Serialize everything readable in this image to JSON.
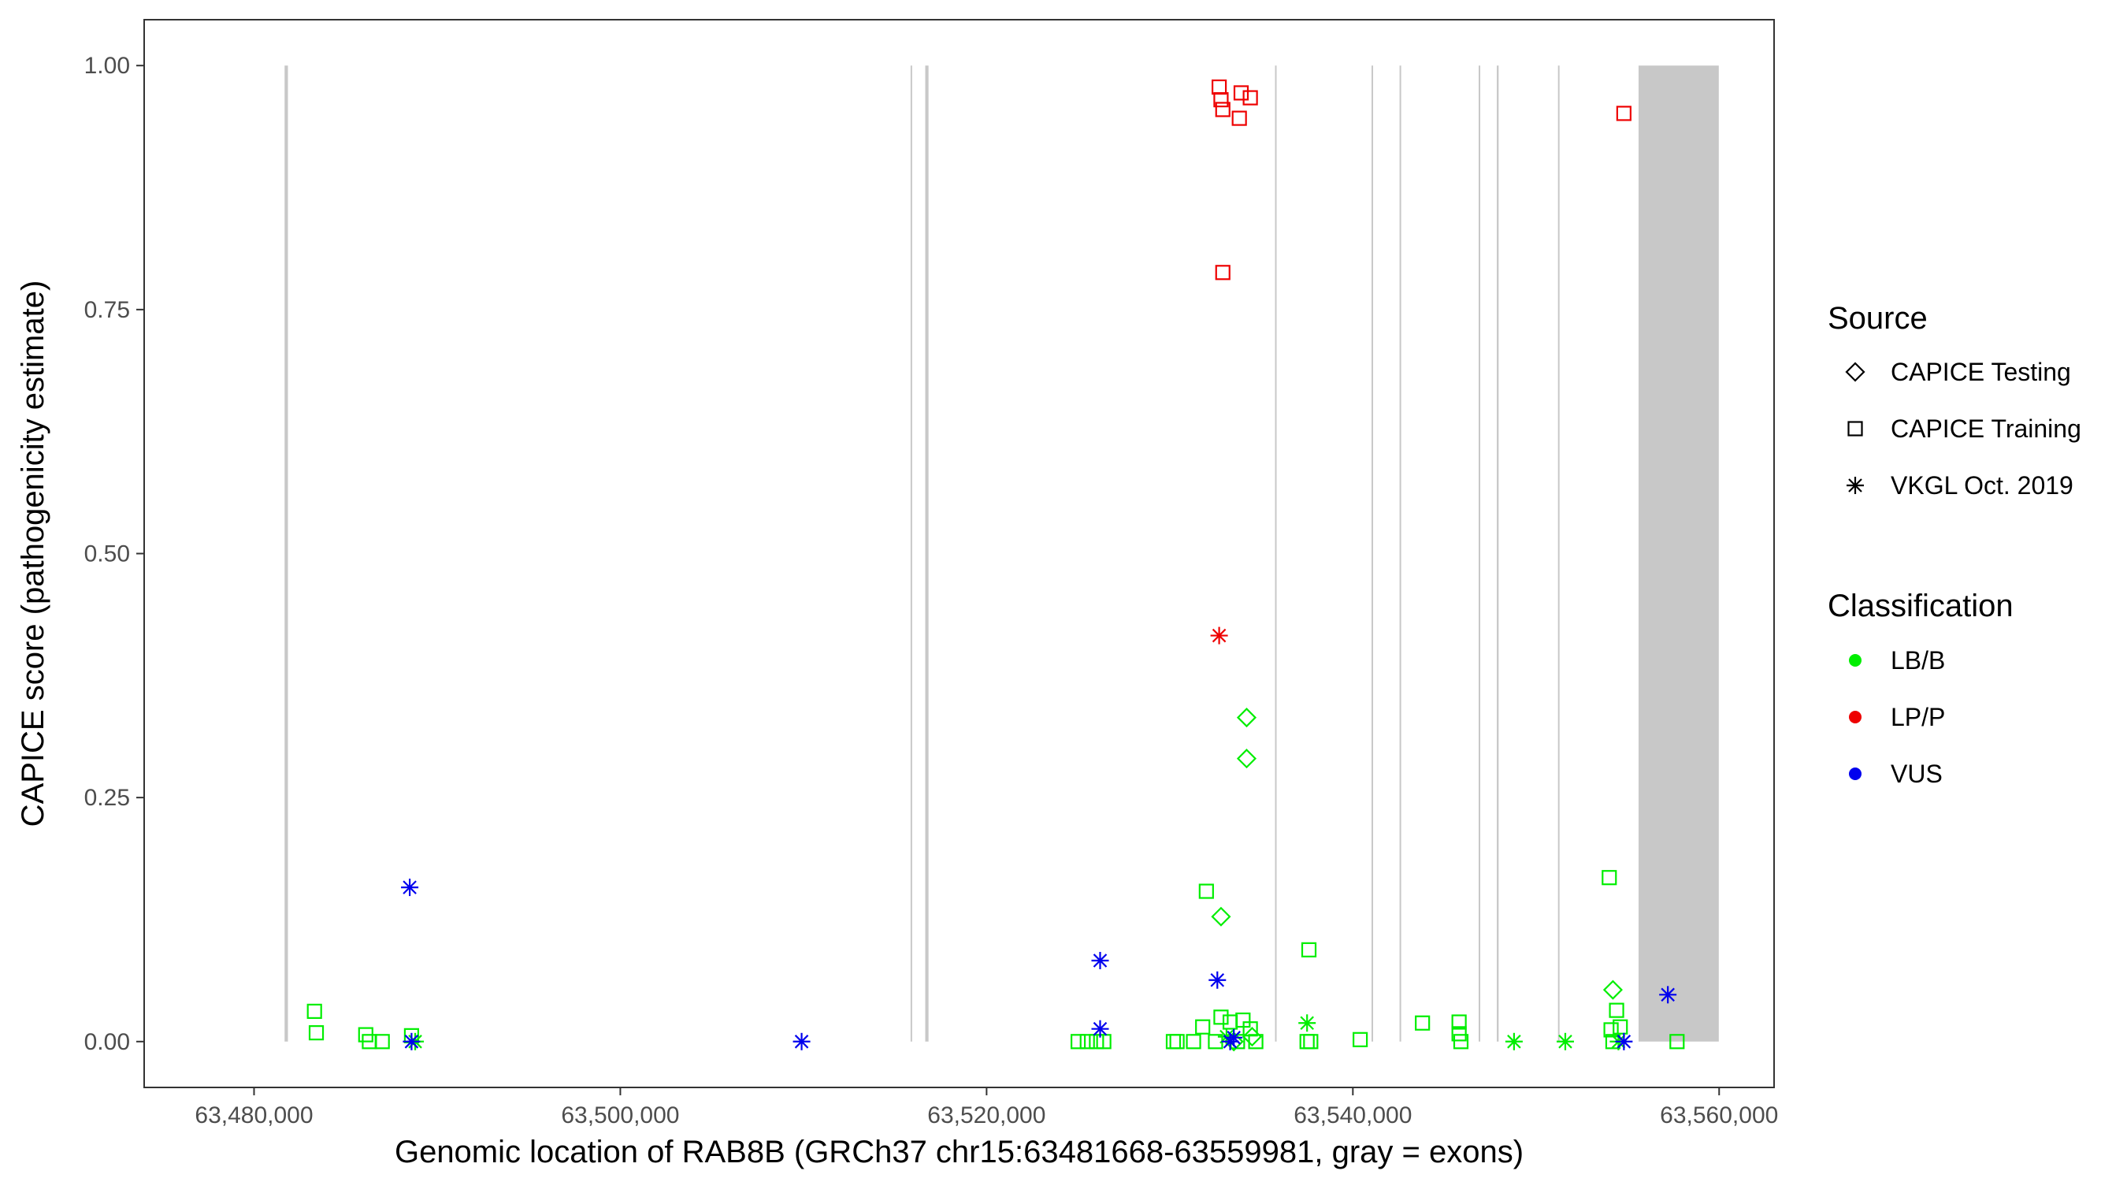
{
  "chart_data": {
    "type": "scatter",
    "title": "",
    "xlabel": "Genomic location of RAB8B (GRCh37 chr15:63481668-63559981, gray = exons)",
    "ylabel": "CAPICE score (pathogenicity estimate)",
    "xlim": [
      63474000,
      63563000
    ],
    "ylim": [
      -0.047,
      1.047
    ],
    "x_ticks": [
      63480000,
      63500000,
      63520000,
      63540000,
      63560000
    ],
    "x_tick_labels": [
      "63,480,000",
      "63,500,000",
      "63,520,000",
      "63,540,000",
      "63,560,000"
    ],
    "y_ticks": [
      0,
      0.25,
      0.5,
      0.75,
      1.0
    ],
    "y_tick_labels": [
      "0.00",
      "0.25",
      "0.50",
      "0.75",
      "1.00"
    ],
    "grid": false,
    "exon_color": "#c8c8c8",
    "exons": [
      [
        63481668,
        63481850
      ],
      [
        63515850,
        63515920
      ],
      [
        63516650,
        63516830
      ],
      [
        63535750,
        63535790
      ],
      [
        63541020,
        63541060
      ],
      [
        63542550,
        63542590
      ],
      [
        63546870,
        63546940
      ],
      [
        63547860,
        63547960
      ],
      [
        63551200,
        63551260
      ],
      [
        63555600,
        63559981
      ]
    ],
    "legend": {
      "position": "right",
      "source": {
        "title": "Source",
        "items": [
          {
            "label": "CAPICE Testing",
            "shape": "diamond"
          },
          {
            "label": "CAPICE Training",
            "shape": "square"
          },
          {
            "label": "VKGL Oct. 2019",
            "shape": "asterisk"
          }
        ]
      },
      "classification": {
        "title": "Classification",
        "items": [
          {
            "label": "LB/B",
            "color": "#00ee00"
          },
          {
            "label": "LP/P",
            "color": "#ee0000"
          },
          {
            "label": "VUS",
            "color": "#0000ee"
          }
        ]
      }
    },
    "series": [
      {
        "source": "CAPICE Training",
        "class": "LP/P",
        "points": [
          [
            63532700,
            0.978
          ],
          [
            63532800,
            0.965
          ],
          [
            63532900,
            0.955
          ],
          [
            63533900,
            0.972
          ],
          [
            63534400,
            0.967
          ],
          [
            63533800,
            0.946
          ],
          [
            63554800,
            0.951
          ],
          [
            63532900,
            0.788
          ]
        ]
      },
      {
        "source": "VKGL Oct. 2019",
        "class": "LP/P",
        "points": [
          [
            63532700,
            0.416
          ]
        ]
      },
      {
        "source": "CAPICE Testing",
        "class": "LB/B",
        "points": [
          [
            63534200,
            0.332
          ],
          [
            63534200,
            0.29
          ],
          [
            63532800,
            0.128
          ],
          [
            63554200,
            0.053
          ],
          [
            63534500,
            0.005
          ],
          [
            63533500,
            0.0
          ]
        ]
      },
      {
        "source": "CAPICE Training",
        "class": "LB/B",
        "points": [
          [
            63483300,
            0.031
          ],
          [
            63483400,
            0.009
          ],
          [
            63486100,
            0.007
          ],
          [
            63486300,
            0.0
          ],
          [
            63487000,
            0.0
          ],
          [
            63488600,
            0.006
          ],
          [
            63532000,
            0.154
          ],
          [
            63537600,
            0.094
          ],
          [
            63554000,
            0.168
          ],
          [
            63525000,
            0.0
          ],
          [
            63525500,
            0.0
          ],
          [
            63526000,
            0.0
          ],
          [
            63526400,
            0.0
          ],
          [
            63530200,
            0.0
          ],
          [
            63530400,
            0.0
          ],
          [
            63531300,
            0.0
          ],
          [
            63531800,
            0.015
          ],
          [
            63532500,
            0.0
          ],
          [
            63532800,
            0.025
          ],
          [
            63533300,
            0.02
          ],
          [
            63533700,
            0.0
          ],
          [
            63534000,
            0.022
          ],
          [
            63534400,
            0.013
          ],
          [
            63534700,
            0.0
          ],
          [
            63537500,
            0.0
          ],
          [
            63537700,
            0.0
          ],
          [
            63540400,
            0.002
          ],
          [
            63543800,
            0.019
          ],
          [
            63545800,
            0.02
          ],
          [
            63545800,
            0.008
          ],
          [
            63545900,
            0.0
          ],
          [
            63554100,
            0.012
          ],
          [
            63554400,
            0.032
          ],
          [
            63554600,
            0.015
          ],
          [
            63554200,
            0.0
          ],
          [
            63557700,
            0.0
          ]
        ]
      },
      {
        "source": "VKGL Oct. 2019",
        "class": "LB/B",
        "points": [
          [
            63488800,
            0.0
          ],
          [
            63537500,
            0.019
          ],
          [
            63548800,
            0.0
          ],
          [
            63551600,
            0.0
          ],
          [
            63533100,
            0.005
          ],
          [
            63554500,
            0.0
          ]
        ]
      },
      {
        "source": "VKGL Oct. 2019",
        "class": "VUS",
        "points": [
          [
            63488500,
            0.158
          ],
          [
            63488600,
            0.0
          ],
          [
            63509900,
            0.0
          ],
          [
            63526200,
            0.083
          ],
          [
            63526200,
            0.013
          ],
          [
            63532600,
            0.063
          ],
          [
            63533500,
            0.004
          ],
          [
            63533300,
            0.0
          ],
          [
            63554800,
            0.0
          ],
          [
            63557200,
            0.048
          ]
        ]
      }
    ]
  }
}
